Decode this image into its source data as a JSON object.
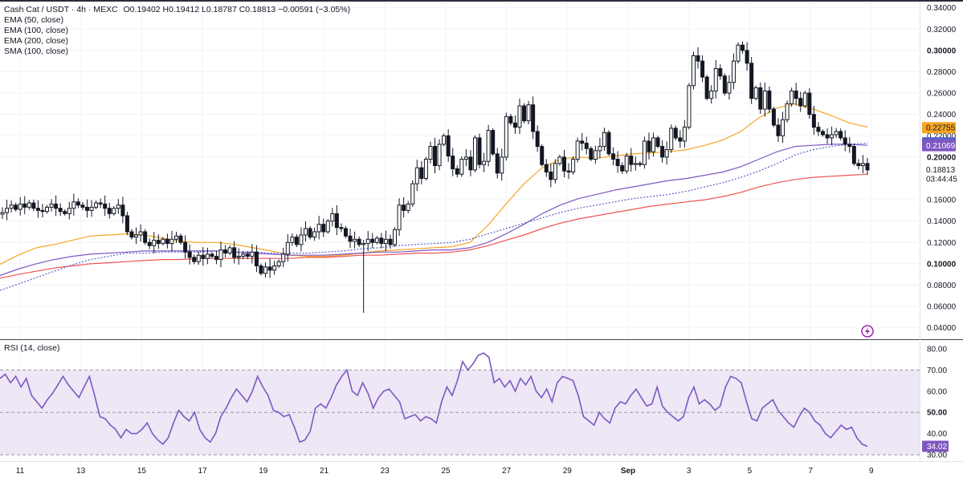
{
  "header": {
    "symbol": "Cash Cat / USDT · 4h · MEXC",
    "ohlc": "O0.19402  H0.19412  L0.18787  C0.18813  −0.00591 (−3.05%)"
  },
  "indicators": [
    {
      "label": "EMA (50, close)",
      "color": "#f5a524"
    },
    {
      "label": "EMA (100, close)",
      "color": "#7e57c2"
    },
    {
      "label": "EMA (200, close)",
      "color": "#ef5350"
    },
    {
      "label": "SMA (100, close)",
      "color": "#5b5fc7"
    }
  ],
  "rsi": {
    "label": "RSI (14, close)",
    "last_value": "34.02",
    "color": "#7e57c2",
    "band_color": "#ede7f6",
    "ticks": [
      "80.00",
      "70.00",
      "60.00",
      "50.00",
      "40.00",
      "30.00"
    ]
  },
  "price_axis": {
    "ticks": [
      "0.34000",
      "0.32000",
      "0.30000",
      "0.28000",
      "0.26000",
      "0.24000",
      "0.22000",
      "0.20000",
      "0.16000",
      "0.14000",
      "0.12000",
      "0.10000",
      "0.08000",
      "0.06000",
      "0.04000"
    ],
    "bold_ticks": [
      "0.30000",
      "0.20000",
      "0.10000"
    ],
    "labels": {
      "ema50": {
        "text": "0.22755",
        "color": "#f5a524"
      },
      "ema100": {
        "text": "0.21069",
        "color": "#7e57c2"
      },
      "sma100": {
        "text": "0.21332",
        "color": "#5b5fc7"
      },
      "price": {
        "text": "0.18813"
      },
      "countdown": {
        "text": "03:44:45"
      }
    }
  },
  "time_axis": {
    "ticks": [
      "11",
      "13",
      "15",
      "17",
      "19",
      "21",
      "23",
      "25",
      "27",
      "29",
      "Sep",
      "3",
      "5",
      "7",
      "9"
    ]
  },
  "chart_data": {
    "type": "candlestick",
    "title": "Cash Cat / USDT · 4h · MEXC",
    "interval": "4h",
    "ylim": [
      0.03,
      0.345
    ],
    "candle_step": "4h",
    "close_series": [
      0.148,
      0.152,
      0.155,
      0.151,
      0.156,
      0.153,
      0.157,
      0.152,
      0.15,
      0.149,
      0.153,
      0.156,
      0.152,
      0.149,
      0.147,
      0.152,
      0.158,
      0.155,
      0.153,
      0.15,
      0.153,
      0.157,
      0.156,
      0.152,
      0.147,
      0.152,
      0.155,
      0.145,
      0.13,
      0.125,
      0.127,
      0.13,
      0.12,
      0.117,
      0.122,
      0.119,
      0.123,
      0.119,
      0.123,
      0.126,
      0.12,
      0.111,
      0.106,
      0.102,
      0.108,
      0.105,
      0.109,
      0.107,
      0.104,
      0.113,
      0.11,
      0.115,
      0.106,
      0.107,
      0.109,
      0.107,
      0.111,
      0.098,
      0.091,
      0.097,
      0.094,
      0.098,
      0.102,
      0.109,
      0.12,
      0.125,
      0.118,
      0.127,
      0.133,
      0.125,
      0.13,
      0.137,
      0.13,
      0.14,
      0.147,
      0.134,
      0.133,
      0.126,
      0.121,
      0.123,
      0.118,
      0.119,
      0.123,
      0.12,
      0.124,
      0.119,
      0.123,
      0.118,
      0.132,
      0.155,
      0.15,
      0.156,
      0.175,
      0.19,
      0.18,
      0.198,
      0.21,
      0.192,
      0.212,
      0.22,
      0.201,
      0.189,
      0.184,
      0.198,
      0.2,
      0.188,
      0.218,
      0.193,
      0.196,
      0.225,
      0.203,
      0.185,
      0.2,
      0.238,
      0.232,
      0.228,
      0.248,
      0.234,
      0.249,
      0.224,
      0.21,
      0.193,
      0.186,
      0.179,
      0.194,
      0.2,
      0.187,
      0.186,
      0.198,
      0.215,
      0.213,
      0.208,
      0.198,
      0.206,
      0.21,
      0.223,
      0.203,
      0.198,
      0.192,
      0.187,
      0.201,
      0.193,
      0.194,
      0.193,
      0.215,
      0.205,
      0.218,
      0.21,
      0.2,
      0.207,
      0.227,
      0.218,
      0.215,
      0.228,
      0.267,
      0.295,
      0.29,
      0.275,
      0.255,
      0.262,
      0.283,
      0.276,
      0.26,
      0.27,
      0.29,
      0.305,
      0.3,
      0.288,
      0.255,
      0.265,
      0.245,
      0.262,
      0.245,
      0.23,
      0.22,
      0.235,
      0.25,
      0.262,
      0.255,
      0.248,
      0.26,
      0.24,
      0.228,
      0.224,
      0.221,
      0.218,
      0.221,
      0.224,
      0.218,
      0.212,
      0.21,
      0.194,
      0.192,
      0.194,
      0.188
    ],
    "pane_boundaries_note": "",
    "series": [
      {
        "name": "EMA (50, close)",
        "color": "#f5a524",
        "style": "solid",
        "values": [
          0.0995,
          0.108,
          0.115,
          0.118,
          0.122,
          0.126,
          0.127,
          0.128,
          0.127,
          0.124,
          0.121,
          0.12,
          0.12,
          0.118,
          0.115,
          0.112,
          0.108,
          0.107,
          0.107,
          0.108,
          0.11,
          0.112,
          0.113,
          0.114,
          0.115,
          0.116,
          0.12,
          0.136,
          0.156,
          0.175,
          0.19,
          0.198,
          0.2,
          0.199,
          0.201,
          0.203,
          0.204,
          0.205,
          0.207,
          0.211,
          0.216,
          0.224,
          0.237,
          0.246,
          0.25,
          0.245,
          0.239,
          0.232,
          0.228
        ]
      },
      {
        "name": "EMA (100, close)",
        "color": "#7e57c2",
        "style": "solid",
        "values": [
          0.089,
          0.095,
          0.1,
          0.104,
          0.107,
          0.109,
          0.11,
          0.111,
          0.112,
          0.112,
          0.112,
          0.112,
          0.112,
          0.111,
          0.11,
          0.109,
          0.108,
          0.108,
          0.108,
          0.109,
          0.11,
          0.111,
          0.111,
          0.112,
          0.113,
          0.113,
          0.115,
          0.12,
          0.128,
          0.137,
          0.147,
          0.155,
          0.161,
          0.165,
          0.169,
          0.172,
          0.175,
          0.178,
          0.18,
          0.183,
          0.186,
          0.191,
          0.198,
          0.205,
          0.21,
          0.211,
          0.212,
          0.212,
          0.211
        ]
      },
      {
        "name": "EMA (200, close)",
        "color": "#ef5350",
        "style": "solid",
        "values": [
          0.0865,
          0.09,
          0.093,
          0.096,
          0.098,
          0.1,
          0.101,
          0.102,
          0.103,
          0.104,
          0.104,
          0.105,
          0.105,
          0.105,
          0.105,
          0.105,
          0.105,
          0.106,
          0.106,
          0.107,
          0.108,
          0.108,
          0.109,
          0.11,
          0.11,
          0.111,
          0.113,
          0.117,
          0.122,
          0.127,
          0.133,
          0.138,
          0.142,
          0.145,
          0.148,
          0.151,
          0.154,
          0.156,
          0.158,
          0.16,
          0.163,
          0.167,
          0.172,
          0.176,
          0.179,
          0.181,
          0.182,
          0.183,
          0.184
        ]
      },
      {
        "name": "SMA (100, close)",
        "color": "#5b5fc7",
        "style": "dotted",
        "values": [
          0.075,
          0.081,
          0.087,
          0.093,
          0.099,
          0.104,
          0.107,
          0.11,
          0.11,
          0.111,
          0.111,
          0.111,
          0.112,
          0.111,
          0.111,
          0.11,
          0.11,
          0.11,
          0.111,
          0.112,
          0.114,
          0.115,
          0.117,
          0.118,
          0.119,
          0.12,
          0.123,
          0.128,
          0.133,
          0.138,
          0.143,
          0.148,
          0.152,
          0.155,
          0.158,
          0.161,
          0.163,
          0.165,
          0.168,
          0.172,
          0.176,
          0.181,
          0.187,
          0.194,
          0.202,
          0.207,
          0.21,
          0.212,
          0.213
        ]
      }
    ],
    "rsi_values": [
      66,
      68,
      64,
      67,
      62,
      66,
      58,
      55,
      52,
      56,
      59,
      63,
      67,
      63,
      60,
      57,
      62,
      67,
      58,
      48,
      47,
      44,
      42,
      38,
      42,
      40,
      40,
      42,
      45,
      40,
      37,
      35,
      38,
      45,
      51,
      48,
      46,
      50,
      42,
      38,
      36,
      40,
      48,
      52,
      57,
      61,
      58,
      55,
      60,
      67,
      62,
      58,
      51,
      50,
      48,
      49,
      43,
      36,
      37,
      41,
      52,
      54,
      52,
      57,
      63,
      67,
      70,
      60,
      58,
      64,
      59,
      52,
      57,
      60,
      61,
      58,
      55,
      47,
      48,
      49,
      46,
      48,
      47,
      45,
      55,
      62,
      58,
      65,
      74,
      70,
      73,
      77,
      78,
      76,
      64,
      66,
      62,
      65,
      60,
      66,
      63,
      67,
      60,
      57,
      61,
      55,
      64,
      67,
      66,
      65,
      58,
      48,
      46,
      44,
      50,
      47,
      45,
      52,
      55,
      54,
      58,
      61,
      57,
      53,
      54,
      62,
      53,
      50,
      48,
      46,
      48,
      57,
      62,
      54,
      56,
      54,
      51,
      53,
      62,
      67,
      66,
      64,
      55,
      47,
      46,
      52,
      54,
      56,
      51,
      48,
      45,
      43,
      48,
      52,
      50,
      46,
      44,
      40,
      38,
      41,
      44,
      42,
      43,
      38,
      35,
      34
    ],
    "rsi_ylim": [
      27,
      83
    ],
    "rsi_levels": [
      70,
      50,
      30
    ],
    "last_close": 0.18813,
    "grid": true,
    "legend": "top-left"
  }
}
